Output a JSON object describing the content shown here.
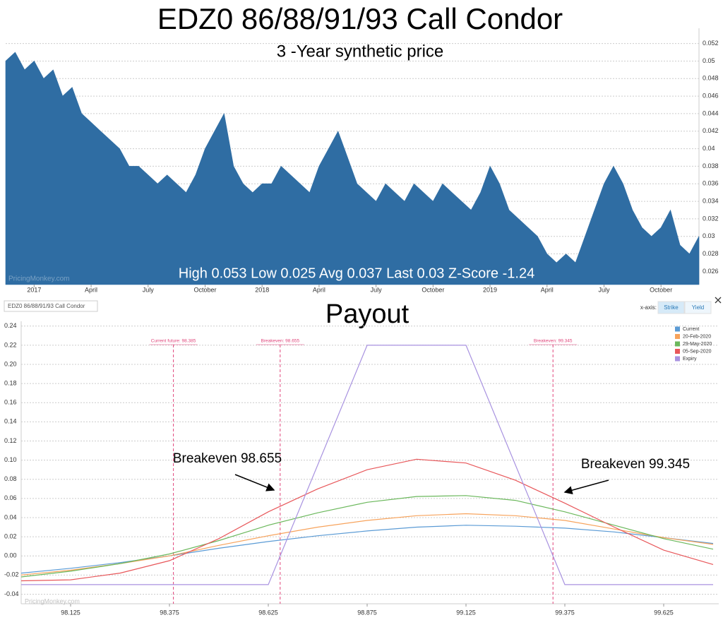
{
  "chart_data": [
    {
      "type": "area",
      "title": "EDZ0 86/88/91/93 Call Condor",
      "subtitle": "3 -Year synthetic price",
      "annotation": "High 0.053 Low 0.025 Avg 0.037 Last 0.03 Z-Score -1.24",
      "watermark": "PricingMonkey.com",
      "color": "#2f6da3",
      "values": [
        0.05,
        0.051,
        0.049,
        0.05,
        0.048,
        0.049,
        0.046,
        0.047,
        0.044,
        0.043,
        0.042,
        0.041,
        0.04,
        0.038,
        0.038,
        0.037,
        0.036,
        0.037,
        0.036,
        0.035,
        0.037,
        0.04,
        0.042,
        0.044,
        0.038,
        0.036,
        0.035,
        0.036,
        0.036,
        0.038,
        0.037,
        0.036,
        0.035,
        0.038,
        0.04,
        0.042,
        0.039,
        0.036,
        0.035,
        0.034,
        0.036,
        0.035,
        0.034,
        0.036,
        0.035,
        0.034,
        0.036,
        0.035,
        0.034,
        0.033,
        0.035,
        0.038,
        0.036,
        0.033,
        0.032,
        0.031,
        0.03,
        0.028,
        0.027,
        0.028,
        0.027,
        0.03,
        0.033,
        0.036,
        0.038,
        0.036,
        0.033,
        0.031,
        0.03,
        0.031,
        0.033,
        0.029,
        0.028,
        0.03
      ],
      "xlim": [
        0,
        73
      ],
      "xticks": [
        {
          "value": 3,
          "label": "2017"
        },
        {
          "value": 9,
          "label": "April"
        },
        {
          "value": 15,
          "label": "July"
        },
        {
          "value": 21,
          "label": "October"
        },
        {
          "value": 27,
          "label": "2018"
        },
        {
          "value": 33,
          "label": "April"
        },
        {
          "value": 39,
          "label": "July"
        },
        {
          "value": 45,
          "label": "October"
        },
        {
          "value": 51,
          "label": "2019"
        },
        {
          "value": 57,
          "label": "April"
        },
        {
          "value": 63,
          "label": "July"
        },
        {
          "value": 69,
          "label": "October"
        }
      ],
      "ylim": [
        0.0245,
        0.0535
      ],
      "yticks": [
        0.026,
        0.028,
        0.03,
        0.032,
        0.034,
        0.036,
        0.038,
        0.04,
        0.042,
        0.044,
        0.046,
        0.048,
        0.05,
        0.052
      ],
      "grid": true
    },
    {
      "type": "line",
      "title": "Payout",
      "chart_label": "EDZ0 86/88/91/93 Call Condor",
      "watermark": "PricingMonkey.com",
      "x_axis_toggle": {
        "label": "x-axis:",
        "options": [
          "Strike",
          "Yield"
        ],
        "selected": 0
      },
      "x": [
        98.0,
        98.125,
        98.25,
        98.375,
        98.5,
        98.625,
        98.75,
        98.875,
        99.0,
        99.125,
        99.25,
        99.375,
        99.5,
        99.625,
        99.75
      ],
      "series": [
        {
          "name": "Current",
          "color": "#5b9bd5",
          "values": [
            -0.018,
            -0.013,
            -0.007,
            0.0,
            0.008,
            0.015,
            0.021,
            0.026,
            0.03,
            0.032,
            0.031,
            0.029,
            0.025,
            0.019,
            0.013
          ]
        },
        {
          "name": "20-Feb-2020",
          "color": "#f7a35c",
          "values": [
            -0.02,
            -0.015,
            -0.008,
            0.0,
            0.011,
            0.021,
            0.03,
            0.037,
            0.042,
            0.044,
            0.042,
            0.037,
            0.028,
            0.019,
            0.012
          ]
        },
        {
          "name": "29-May-2020",
          "color": "#6bb85c",
          "values": [
            -0.022,
            -0.016,
            -0.008,
            0.002,
            0.016,
            0.032,
            0.045,
            0.056,
            0.062,
            0.063,
            0.058,
            0.046,
            0.032,
            0.018,
            0.007
          ]
        },
        {
          "name": "05-Sep-2020",
          "color": "#e8575a",
          "values": [
            -0.026,
            -0.025,
            -0.018,
            -0.005,
            0.018,
            0.046,
            0.07,
            0.09,
            0.101,
            0.097,
            0.079,
            0.055,
            0.03,
            0.006,
            -0.009
          ]
        },
        {
          "name": "Expiry",
          "color": "#a892e0",
          "values": [
            -0.03,
            -0.03,
            -0.03,
            -0.03,
            -0.03,
            -0.03,
            0.095,
            0.22,
            0.22,
            0.22,
            0.095,
            -0.03,
            -0.03,
            -0.03,
            -0.03
          ]
        }
      ],
      "xlim": [
        98.0,
        99.75
      ],
      "xticks": [
        98.125,
        98.375,
        98.625,
        98.875,
        99.125,
        99.375,
        99.625
      ],
      "ylim": [
        -0.05,
        0.245
      ],
      "yticks": [
        -0.04,
        -0.02,
        {
          "value": 0,
          "label": "0.00"
        },
        0.02,
        0.04,
        0.06,
        0.08,
        {
          "value": 0.1,
          "label": "0.10"
        },
        0.12,
        0.14,
        0.16,
        0.18,
        {
          "value": 0.2,
          "label": "0.20"
        },
        0.22,
        0.24
      ],
      "grid": true,
      "legend": "top-right",
      "markers": [
        {
          "value": 98.385,
          "label": "Current future: 98.385"
        },
        {
          "value": 98.655,
          "label": "Breakeven: 98.655"
        },
        {
          "value": 99.345,
          "label": "Breakeven: 99.345"
        }
      ],
      "annotations": [
        "Breakeven 98.655",
        "Breakeven 99.345"
      ]
    }
  ]
}
